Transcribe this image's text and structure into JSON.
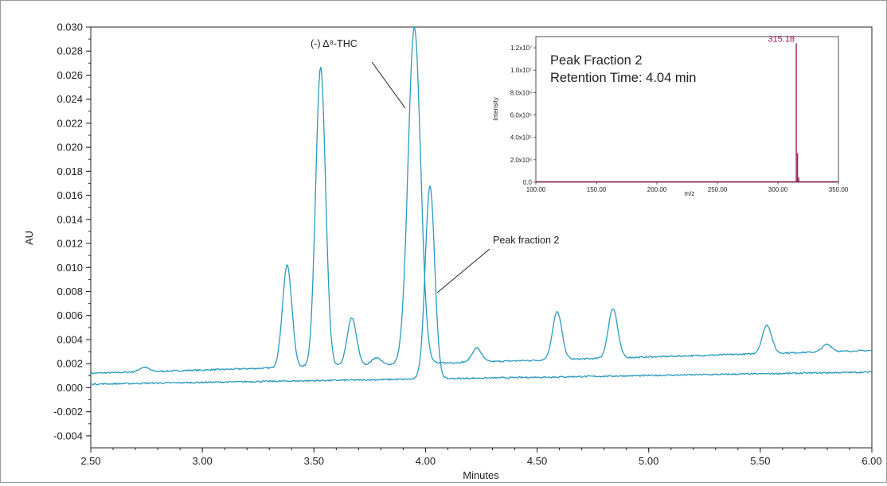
{
  "chart_data": [
    {
      "type": "line",
      "ylabel": "AU",
      "xlabel": "Minutes",
      "xlim": [
        2.5,
        6.0
      ],
      "ylim": [
        -0.005,
        0.03
      ],
      "x_ticks": [
        "2.50",
        "3.00",
        "3.50",
        "4.00",
        "4.50",
        "5.00",
        "5.50",
        "6.00"
      ],
      "y_ticks": [
        "0.030",
        "0.028",
        "0.026",
        "0.024",
        "0.022",
        "0.020",
        "0.018",
        "0.016",
        "0.014",
        "0.012",
        "0.010",
        "0.008",
        "0.006",
        "0.004",
        "0.002",
        "0.000",
        "-0.002",
        "-0.004"
      ],
      "grid": false,
      "series": [
        {
          "color": "#2a9ac0",
          "baseline_start": 0.0012,
          "baseline_end": 0.0031,
          "peaks": [
            {
              "x": 2.74,
              "y": 0.0017
            },
            {
              "x": 3.38,
              "y": 0.0102
            },
            {
              "x": 3.53,
              "y": 0.0267
            },
            {
              "x": 3.67,
              "y": 0.0058
            },
            {
              "x": 3.78,
              "y": 0.0025
            },
            {
              "x": 3.95,
              "y": 0.03
            },
            {
              "x": 4.23,
              "y": 0.0033
            },
            {
              "x": 4.59,
              "y": 0.0063
            },
            {
              "x": 4.84,
              "y": 0.0066
            },
            {
              "x": 5.53,
              "y": 0.0052
            },
            {
              "x": 5.8,
              "y": 0.0036
            }
          ]
        },
        {
          "color": "#2a9ac0",
          "baseline_start": 0.0003,
          "baseline_end": 0.0013,
          "peaks": [
            {
              "x": 4.02,
              "y": 0.0168
            }
          ]
        }
      ],
      "annotations": [
        {
          "text": "(-) Δ⁸-THC"
        },
        {
          "text": "Peak fraction 2"
        }
      ]
    },
    {
      "type": "bar",
      "ylabel": "Intensity",
      "xlabel": "m/z",
      "xlim": [
        100,
        350
      ],
      "ylim": [
        0,
        13000000
      ],
      "x_ticks": [
        "100.00",
        "150.00",
        "200.00",
        "250.00",
        "300.00",
        "350.00"
      ],
      "y_ticks": [
        "0.0",
        "2.0x10⁶",
        "4.0x10⁶",
        "6.0x10⁶",
        "8.0x10⁶",
        "1.0x10⁷",
        "1.2x10⁷"
      ],
      "color": "#9b1f5c",
      "peaks": [
        {
          "x": 315.18,
          "y": 12400000,
          "label": "315.18"
        },
        {
          "x": 316.2,
          "y": 2600000
        },
        {
          "x": 317.2,
          "y": 400000
        }
      ],
      "note_line1": "Peak Fraction 2",
      "note_line2": "Retention Time: 4.04 min"
    }
  ]
}
